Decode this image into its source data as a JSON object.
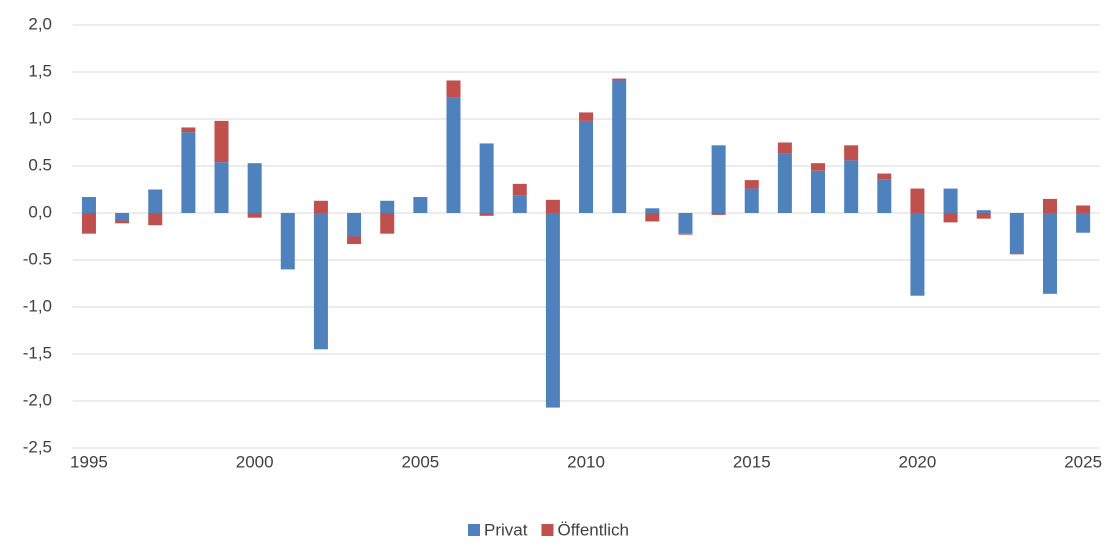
{
  "chart_data": {
    "type": "stacked-bar",
    "categories": [
      "1995",
      null,
      null,
      null,
      null,
      "2000",
      null,
      null,
      null,
      null,
      "2005",
      null,
      null,
      null,
      null,
      "2010",
      null,
      null,
      null,
      null,
      "2015",
      null,
      null,
      null,
      null,
      "2020",
      null,
      null,
      null,
      null,
      "2025"
    ],
    "series": [
      {
        "name": "Privat",
        "color": "#4f81bd",
        "values": [
          0.17,
          -0.08,
          0.25,
          0.86,
          0.54,
          0.53,
          -0.6,
          -1.45,
          -0.25,
          0.13,
          0.17,
          1.23,
          0.74,
          0.19,
          -2.07,
          0.98,
          1.41,
          0.05,
          -0.22,
          0.72,
          0.26,
          0.63,
          0.45,
          0.56,
          0.36,
          -0.88,
          0.26,
          0.03,
          -0.43,
          -0.86,
          -0.21
        ]
      },
      {
        "name": "Öffentlich",
        "color": "#c0504d",
        "values": [
          -0.22,
          -0.03,
          -0.13,
          0.05,
          0.44,
          -0.05,
          0,
          0.13,
          -0.08,
          -0.22,
          0,
          0.18,
          -0.03,
          0.12,
          0.14,
          0.09,
          0.02,
          -0.09,
          -0.01,
          -0.02,
          0.09,
          0.12,
          0.08,
          0.16,
          0.06,
          0.26,
          -0.1,
          -0.06,
          -0.01,
          0.15,
          0.08
        ]
      }
    ],
    "ylim": [
      -2.5,
      2.0
    ],
    "yticks": [
      {
        "value": 2,
        "label": "2,0"
      },
      {
        "value": 1.5,
        "label": "1,5"
      },
      {
        "value": 1,
        "label": "1,0"
      },
      0.5,
      {
        "value": 0,
        "label": "0,0"
      },
      -0.5,
      {
        "value": -1,
        "label": "-1,0"
      },
      {
        "value": -1.5,
        "label": "-1,5"
      },
      {
        "value": -2,
        "label": "-2,0"
      },
      {
        "value": -2.5,
        "label": "-2,5"
      }
    ],
    "grid": true,
    "legend": "bottom"
  }
}
